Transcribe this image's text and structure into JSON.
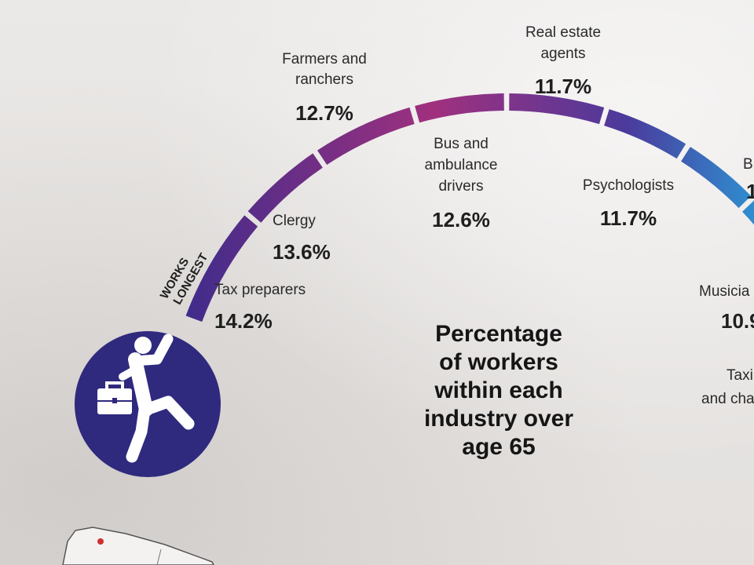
{
  "chart_data": {
    "type": "arc",
    "title_lines": [
      "Percentage",
      "of workers",
      "within each",
      "industry over",
      "age 65"
    ],
    "arc_label_lines": [
      "WORKS",
      "LONGEST"
    ],
    "unit": "%",
    "categories": [
      {
        "label": [
          "Tax preparers"
        ],
        "value": 14.2,
        "display": "14.2%"
      },
      {
        "label": [
          "Clergy"
        ],
        "value": 13.6,
        "display": "13.6%"
      },
      {
        "label": [
          "Farmers and",
          "ranchers"
        ],
        "value": 12.7,
        "display": "12.7%"
      },
      {
        "label": [
          "Bus and",
          "ambulance",
          "drivers"
        ],
        "value": 12.6,
        "display": "12.6%"
      },
      {
        "label": [
          "Real estate",
          "agents"
        ],
        "value": 11.7,
        "display": "11.7%"
      },
      {
        "label": [
          "Psychologists"
        ],
        "value": 11.7,
        "display": "11.7%"
      },
      {
        "label": [
          "B"
        ],
        "value": null,
        "display": "1"
      },
      {
        "label": [
          "Musicia"
        ],
        "value": null,
        "display": "10.9"
      },
      {
        "label": [
          "Taxi",
          "and cha"
        ],
        "value": null,
        "display": ""
      }
    ],
    "colors": {
      "arc_start": "#3b2c8c",
      "arc_mid": "#a0307e",
      "arc_end": "#2f8ed0",
      "icon_bg": "#2f2a7e",
      "icon_fg": "#ffffff"
    },
    "icon": "worker-with-briefcase-icon"
  }
}
